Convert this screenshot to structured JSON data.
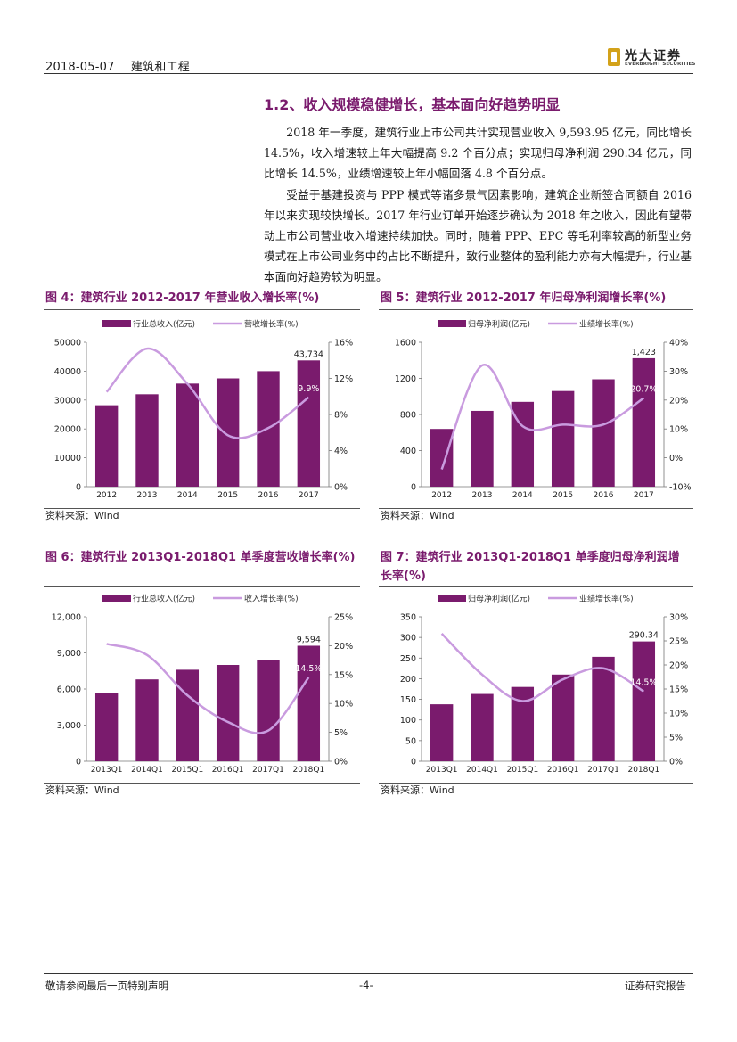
{
  "header": {
    "date": "2018-05-07",
    "sector": "建筑和工程"
  },
  "logo": {
    "cn": "光大证券",
    "en": "EVERBRIGHT SECURITIES"
  },
  "section": {
    "title": "1.2、收入规模稳健增长，基本面向好趋势明显",
    "paragraphs": [
      "2018 年一季度，建筑行业上市公司共计实现营业收入 9,593.95 亿元，同比增长 14.5%，收入增速较上年大幅提高 9.2 个百分点；实现归母净利润 290.34 亿元，同比增长 14.5%，业绩增速较上年小幅回落 4.8 个百分点。",
      "受益于基建投资与 PPP 模式等诸多景气因素影响，建筑企业新签合同额自 2016 年以来实现较快增长。2017 年行业订单开始逐步确认为 2018 年之收入，因此有望带动上市公司营业收入增速持续加快。同时，随着 PPP、EPC 等毛利率较高的新型业务模式在上市公司业务中的占比不断提升，致行业整体的盈利能力亦有大幅提升，行业基本面向好趋势较为明显。"
    ]
  },
  "figures": [
    {
      "title": "图 4：建筑行业 2012-2017 年营业收入增长率(%)",
      "source": "资料来源：Wind"
    },
    {
      "title": "图 5：建筑行业 2012-2017 年归母净利润增长率(%)",
      "source": "资料来源：Wind"
    },
    {
      "title": "图 6：建筑行业 2013Q1-2018Q1 单季度营收增长率(%)",
      "source": "资料来源：Wind"
    },
    {
      "title_line1": "图 7：建筑行业 2013Q1-2018Q1 单季度归母净利润增",
      "title_line2": "长率(%)",
      "source": "资料来源：Wind"
    }
  ],
  "colors": {
    "bar": "#7a1b6d",
    "line": "#c99bdf",
    "title": "#7a1b6d"
  },
  "chart_data": [
    {
      "type": "bar",
      "categories": [
        "2012",
        "2013",
        "2014",
        "2015",
        "2016",
        "2017"
      ],
      "series": [
        {
          "name": "行业总收入(亿元)",
          "kind": "bar",
          "axis": "left",
          "values": [
            28200,
            32000,
            35700,
            37500,
            40000,
            43734
          ],
          "labels": [
            "",
            "",
            "",
            "",
            "",
            "43,734"
          ]
        },
        {
          "name": "营收增长率(%)",
          "kind": "line",
          "axis": "right",
          "values": [
            10.5,
            15.3,
            11.4,
            5.7,
            6.5,
            9.9
          ],
          "labels": [
            "",
            "",
            "",
            "",
            "",
            "9.9%"
          ]
        }
      ],
      "ylim": [
        0,
        50000
      ],
      "yticks": [
        "0",
        "10000",
        "20000",
        "30000",
        "40000",
        "50000"
      ],
      "y2lim": [
        0,
        16
      ],
      "y2ticks": [
        "0%",
        "4%",
        "8%",
        "12%",
        "16%"
      ]
    },
    {
      "type": "bar",
      "categories": [
        "2012",
        "2013",
        "2014",
        "2015",
        "2016",
        "2017"
      ],
      "series": [
        {
          "name": "归母净利润(亿元)",
          "kind": "bar",
          "axis": "left",
          "values": [
            640,
            840,
            940,
            1060,
            1190,
            1423
          ],
          "labels": [
            "",
            "",
            "",
            "",
            "",
            "1,423"
          ]
        },
        {
          "name": "业绩增长率(%)",
          "kind": "line",
          "axis": "right",
          "values": [
            -4,
            32,
            11,
            11.5,
            11.5,
            20.7
          ],
          "labels": [
            "",
            "",
            "",
            "",
            "",
            "20.7%"
          ]
        }
      ],
      "ylim": [
        0,
        1600
      ],
      "yticks": [
        "0",
        "400",
        "800",
        "1200",
        "1600"
      ],
      "y2lim": [
        -10,
        40
      ],
      "y2ticks": [
        "-10%",
        "0%",
        "10%",
        "20%",
        "30%",
        "40%"
      ]
    },
    {
      "type": "bar",
      "categories": [
        "2013Q1",
        "2014Q1",
        "2015Q1",
        "2016Q1",
        "2017Q1",
        "2018Q1"
      ],
      "series": [
        {
          "name": "行业总收入(亿元)",
          "kind": "bar",
          "axis": "left",
          "values": [
            5700,
            6800,
            7600,
            8000,
            8400,
            9594
          ],
          "labels": [
            "",
            "",
            "",
            "",
            "",
            "9,594"
          ]
        },
        {
          "name": "收入增长率(%)",
          "kind": "line",
          "axis": "right",
          "values": [
            20.3,
            18.4,
            11.4,
            6.8,
            5.3,
            14.5
          ],
          "labels": [
            "",
            "",
            "",
            "",
            "",
            "14.5%"
          ]
        }
      ],
      "ylim": [
        0,
        12000
      ],
      "yticks": [
        "0",
        "3,000",
        "6,000",
        "9,000",
        "12,000"
      ],
      "y2lim": [
        0,
        25
      ],
      "y2ticks": [
        "0%",
        "5%",
        "10%",
        "15%",
        "20%",
        "25%"
      ]
    },
    {
      "type": "bar",
      "categories": [
        "2013Q1",
        "2014Q1",
        "2015Q1",
        "2016Q1",
        "2017Q1",
        "2018Q1"
      ],
      "series": [
        {
          "name": "归母净利润(亿元)",
          "kind": "bar",
          "axis": "left",
          "values": [
            138,
            163,
            180,
            210,
            253,
            290.34
          ],
          "labels": [
            "",
            "",
            "",
            "",
            "",
            "290.34"
          ]
        },
        {
          "name": "业绩增长率(%)",
          "kind": "line",
          "axis": "right",
          "values": [
            26.5,
            18,
            12.5,
            17,
            19.3,
            14.5
          ],
          "labels": [
            "",
            "",
            "",
            "",
            "",
            "14.5%"
          ]
        }
      ],
      "ylim": [
        0,
        350
      ],
      "yticks": [
        "0",
        "50",
        "100",
        "150",
        "200",
        "250",
        "300",
        "350"
      ],
      "y2lim": [
        0,
        30
      ],
      "y2ticks": [
        "0%",
        "5%",
        "10%",
        "15%",
        "20%",
        "25%",
        "30%"
      ]
    }
  ],
  "footer": {
    "left": "敬请参阅最后一页特别声明",
    "page": "-4-",
    "right": "证券研究报告"
  }
}
